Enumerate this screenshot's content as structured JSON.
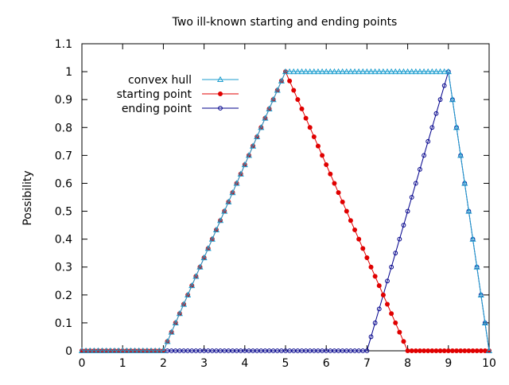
{
  "chart_data": {
    "type": "line",
    "title": "Two ill-known starting and ending points",
    "xlabel": "",
    "ylabel": "Possibility",
    "xlim": [
      0,
      10
    ],
    "ylim": [
      0,
      1.1
    ],
    "xticks": [
      0,
      1,
      2,
      3,
      4,
      5,
      6,
      7,
      8,
      9,
      10
    ],
    "yticks": [
      0,
      0.1,
      0.2,
      0.3,
      0.4,
      0.5,
      0.6,
      0.7,
      0.8,
      0.9,
      1,
      1.1
    ],
    "grid": false,
    "legend_position": "top-left",
    "x_sampling": {
      "start": 0,
      "end": 10,
      "step": 0.1
    },
    "series": [
      {
        "name": "convex hull",
        "color": "#1e9ecf",
        "marker": "triangle",
        "shape": {
          "type": "trapezoid",
          "a": 2,
          "b": 5,
          "c": 9,
          "d": 10
        }
      },
      {
        "name": "starting point",
        "color": "#e00000",
        "marker": "filled-circle",
        "shape": {
          "type": "triangle",
          "a": 2,
          "b": 5,
          "c": 8
        }
      },
      {
        "name": "ending point",
        "color": "#00008b",
        "marker": "open-circle",
        "shape": {
          "type": "triangle",
          "a": 7,
          "b": 9,
          "c": 10
        }
      }
    ]
  }
}
